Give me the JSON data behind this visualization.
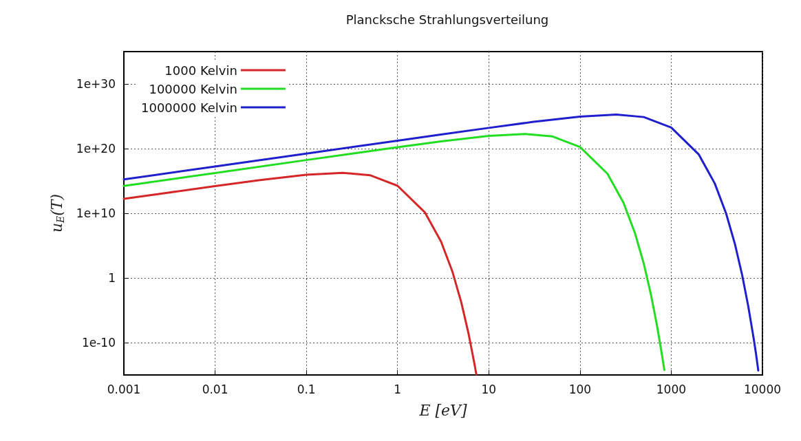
{
  "chart_data": {
    "type": "line",
    "title": "Plancksche Strahlungsverteilung",
    "xlabel": "E [eV]",
    "ylabel": "u$_{E}$(T)",
    "log": "xy",
    "grid": true,
    "legend": "top left",
    "marker": "none",
    "line_style": "solid",
    "xlim": [
      0.001,
      10000
    ],
    "ylim": [
      1e-15,
      1e+35
    ],
    "xticks": [
      0.001,
      0.01,
      0.1,
      1,
      10,
      100,
      1000,
      10000
    ],
    "yticks": [
      {
        "value": 1e-10,
        "label": "1e-10"
      },
      1,
      {
        "value": 10000000000.0,
        "label": "1e+10"
      },
      {
        "value": 1e+20,
        "label": "1e+20"
      },
      {
        "value": 1e+30,
        "label": "1e+30"
      }
    ],
    "series": [
      {
        "name": "1000 Kelvin",
        "color": "#d62728",
        "x": [
          0.001,
          0.003,
          0.01,
          0.03,
          0.1,
          0.25,
          0.5,
          1,
          2,
          3,
          4,
          5,
          6,
          7,
          7.3
        ],
        "values": [
          1700000000000.0,
          15000000000000.0,
          160000000000000.0,
          1300000000000000.0,
          9100000000000000.0,
          1.8e+16,
          7600000000000000.0,
          180000000000000.0,
          13000000000.0,
          410000.0,
          8.9,
          0.00016,
          2.5e-09,
          3.6e-14,
          1.3e-15
        ]
      },
      {
        "name": "100000 Kelvin",
        "color": "#22dd22",
        "x": [
          0.001,
          0.01,
          0.1,
          0.3,
          1,
          3,
          10,
          25,
          50,
          100,
          200,
          300,
          400,
          500,
          600,
          700,
          800,
          840
        ],
        "values": [
          170000000000000.0,
          1.7e+16,
          1.7e+18,
          1.5e+19,
          1.6e+20,
          1.3e+21,
          9.1e+21,
          1.8e+22,
          7.6e+21,
          1.8e+20,
          1.3e+16,
          410000000000.0,
          8900000.0,
          160.0,
          0.0025,
          3.6e-08,
          5e-13,
          6e-15
        ]
      },
      {
        "name": "1000000 Kelvin",
        "color": "#1f1fcc",
        "x": [
          0.001,
          0.01,
          0.1,
          1,
          3,
          10,
          30,
          100,
          250,
          500,
          1000,
          2000,
          3000,
          4000,
          5000,
          6000,
          7000,
          8000,
          8500,
          9000
        ],
        "values": [
          1700000000000000.0,
          1.7e+17,
          1.7e+19,
          1.7e+21,
          1.5e+22,
          1.6e+23,
          1.3e+24,
          9.1e+24,
          1.8e+25,
          7.6e+24,
          1.8e+23,
          1.3e+19,
          410000000000000.0,
          8900000000.0,
          160000.0,
          2.5,
          3.6e-05,
          5e-10,
          1.8e-12,
          5e-15
        ]
      }
    ]
  }
}
